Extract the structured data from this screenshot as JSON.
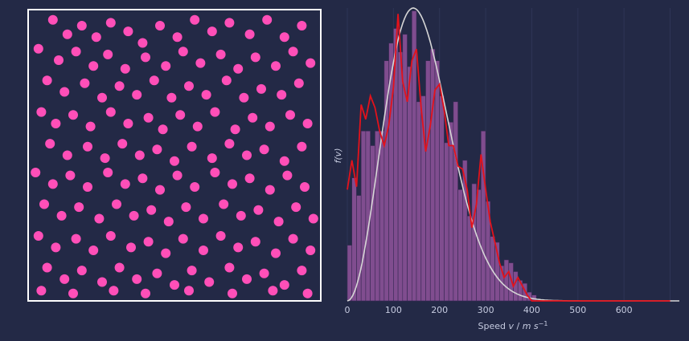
{
  "colors": {
    "background": "#232946",
    "box_frame": "#ffffff",
    "particle": "#ff4fb8",
    "histogram_fill": "#a05aa8",
    "histogram_edge": "#3a2a55",
    "empirical_line": "#e3121b",
    "theory_curve": "#d6d6d6",
    "tick_text": "#c6cbe0",
    "grid": "#2e3556"
  },
  "chart_data": [
    {
      "type": "scatter",
      "name": "particle_box",
      "xlim": [
        0,
        1
      ],
      "ylim": [
        0,
        1
      ],
      "points": [
        [
          0.08,
          0.97
        ],
        [
          0.13,
          0.92
        ],
        [
          0.18,
          0.95
        ],
        [
          0.23,
          0.91
        ],
        [
          0.28,
          0.96
        ],
        [
          0.34,
          0.93
        ],
        [
          0.39,
          0.89
        ],
        [
          0.45,
          0.95
        ],
        [
          0.51,
          0.91
        ],
        [
          0.57,
          0.97
        ],
        [
          0.63,
          0.93
        ],
        [
          0.69,
          0.96
        ],
        [
          0.76,
          0.92
        ],
        [
          0.82,
          0.97
        ],
        [
          0.88,
          0.91
        ],
        [
          0.94,
          0.95
        ],
        [
          0.03,
          0.87
        ],
        [
          0.1,
          0.83
        ],
        [
          0.16,
          0.86
        ],
        [
          0.22,
          0.81
        ],
        [
          0.27,
          0.85
        ],
        [
          0.33,
          0.8
        ],
        [
          0.4,
          0.84
        ],
        [
          0.47,
          0.81
        ],
        [
          0.53,
          0.86
        ],
        [
          0.59,
          0.82
        ],
        [
          0.66,
          0.85
        ],
        [
          0.72,
          0.8
        ],
        [
          0.78,
          0.84
        ],
        [
          0.85,
          0.81
        ],
        [
          0.91,
          0.86
        ],
        [
          0.97,
          0.82
        ],
        [
          0.06,
          0.76
        ],
        [
          0.12,
          0.72
        ],
        [
          0.19,
          0.75
        ],
        [
          0.25,
          0.7
        ],
        [
          0.31,
          0.74
        ],
        [
          0.37,
          0.71
        ],
        [
          0.43,
          0.76
        ],
        [
          0.49,
          0.7
        ],
        [
          0.55,
          0.74
        ],
        [
          0.61,
          0.71
        ],
        [
          0.68,
          0.76
        ],
        [
          0.74,
          0.7
        ],
        [
          0.8,
          0.73
        ],
        [
          0.87,
          0.71
        ],
        [
          0.93,
          0.75
        ],
        [
          0.04,
          0.65
        ],
        [
          0.09,
          0.61
        ],
        [
          0.15,
          0.64
        ],
        [
          0.21,
          0.6
        ],
        [
          0.28,
          0.65
        ],
        [
          0.34,
          0.61
        ],
        [
          0.41,
          0.63
        ],
        [
          0.46,
          0.59
        ],
        [
          0.52,
          0.64
        ],
        [
          0.58,
          0.6
        ],
        [
          0.64,
          0.65
        ],
        [
          0.71,
          0.59
        ],
        [
          0.77,
          0.63
        ],
        [
          0.83,
          0.6
        ],
        [
          0.9,
          0.64
        ],
        [
          0.96,
          0.61
        ],
        [
          0.07,
          0.54
        ],
        [
          0.13,
          0.5
        ],
        [
          0.2,
          0.53
        ],
        [
          0.26,
          0.49
        ],
        [
          0.32,
          0.54
        ],
        [
          0.38,
          0.5
        ],
        [
          0.44,
          0.52
        ],
        [
          0.5,
          0.48
        ],
        [
          0.56,
          0.53
        ],
        [
          0.63,
          0.49
        ],
        [
          0.69,
          0.54
        ],
        [
          0.75,
          0.5
        ],
        [
          0.81,
          0.52
        ],
        [
          0.88,
          0.48
        ],
        [
          0.94,
          0.53
        ],
        [
          0.02,
          0.44
        ],
        [
          0.08,
          0.4
        ],
        [
          0.14,
          0.43
        ],
        [
          0.2,
          0.39
        ],
        [
          0.27,
          0.44
        ],
        [
          0.33,
          0.4
        ],
        [
          0.39,
          0.42
        ],
        [
          0.45,
          0.38
        ],
        [
          0.51,
          0.43
        ],
        [
          0.57,
          0.39
        ],
        [
          0.64,
          0.44
        ],
        [
          0.7,
          0.4
        ],
        [
          0.76,
          0.42
        ],
        [
          0.83,
          0.38
        ],
        [
          0.89,
          0.43
        ],
        [
          0.95,
          0.39
        ],
        [
          0.05,
          0.33
        ],
        [
          0.11,
          0.29
        ],
        [
          0.17,
          0.32
        ],
        [
          0.24,
          0.28
        ],
        [
          0.3,
          0.33
        ],
        [
          0.36,
          0.29
        ],
        [
          0.42,
          0.31
        ],
        [
          0.48,
          0.27
        ],
        [
          0.54,
          0.32
        ],
        [
          0.6,
          0.28
        ],
        [
          0.67,
          0.33
        ],
        [
          0.73,
          0.29
        ],
        [
          0.79,
          0.31
        ],
        [
          0.86,
          0.27
        ],
        [
          0.92,
          0.32
        ],
        [
          0.98,
          0.28
        ],
        [
          0.03,
          0.22
        ],
        [
          0.09,
          0.18
        ],
        [
          0.16,
          0.21
        ],
        [
          0.22,
          0.17
        ],
        [
          0.28,
          0.22
        ],
        [
          0.35,
          0.18
        ],
        [
          0.41,
          0.2
        ],
        [
          0.47,
          0.16
        ],
        [
          0.53,
          0.21
        ],
        [
          0.6,
          0.17
        ],
        [
          0.66,
          0.22
        ],
        [
          0.72,
          0.18
        ],
        [
          0.78,
          0.2
        ],
        [
          0.85,
          0.16
        ],
        [
          0.91,
          0.21
        ],
        [
          0.97,
          0.17
        ],
        [
          0.06,
          0.11
        ],
        [
          0.12,
          0.07
        ],
        [
          0.18,
          0.1
        ],
        [
          0.25,
          0.06
        ],
        [
          0.31,
          0.11
        ],
        [
          0.37,
          0.07
        ],
        [
          0.44,
          0.09
        ],
        [
          0.5,
          0.05
        ],
        [
          0.56,
          0.1
        ],
        [
          0.62,
          0.06
        ],
        [
          0.69,
          0.11
        ],
        [
          0.75,
          0.07
        ],
        [
          0.81,
          0.09
        ],
        [
          0.88,
          0.05
        ],
        [
          0.94,
          0.1
        ],
        [
          0.04,
          0.03
        ],
        [
          0.15,
          0.02
        ],
        [
          0.29,
          0.03
        ],
        [
          0.4,
          0.02
        ],
        [
          0.55,
          0.03
        ],
        [
          0.7,
          0.02
        ],
        [
          0.84,
          0.03
        ],
        [
          0.96,
          0.02
        ]
      ]
    },
    {
      "type": "bar",
      "name": "speed_distribution",
      "xlabel": "Speed v / m s⁻¹",
      "ylabel": "f(v)",
      "xlim": [
        0,
        720
      ],
      "ylim": [
        0,
        1.0
      ],
      "xticks": [
        "0",
        "100",
        "200",
        "300",
        "400",
        "500",
        "600"
      ],
      "bin_width": 10,
      "histogram": [
        0.19,
        0.42,
        0.36,
        0.58,
        0.58,
        0.53,
        0.58,
        0.58,
        0.82,
        0.88,
        0.93,
        0.85,
        0.91,
        0.8,
        0.99,
        0.68,
        0.7,
        0.82,
        0.86,
        0.82,
        0.7,
        0.54,
        0.61,
        0.68,
        0.38,
        0.48,
        0.29,
        0.4,
        0.38,
        0.58,
        0.34,
        0.22,
        0.2,
        0.12,
        0.14,
        0.13,
        0.1,
        0.07,
        0.06,
        0.03,
        0.02
      ],
      "empirical_line": [
        [
          0,
          0.38
        ],
        [
          10,
          0.48
        ],
        [
          20,
          0.39
        ],
        [
          30,
          0.67
        ],
        [
          40,
          0.62
        ],
        [
          50,
          0.7
        ],
        [
          60,
          0.66
        ],
        [
          70,
          0.58
        ],
        [
          80,
          0.53
        ],
        [
          90,
          0.6
        ],
        [
          100,
          0.73
        ],
        [
          110,
          0.98
        ],
        [
          120,
          0.75
        ],
        [
          130,
          0.68
        ],
        [
          140,
          0.82
        ],
        [
          150,
          0.86
        ],
        [
          160,
          0.66
        ],
        [
          170,
          0.51
        ],
        [
          180,
          0.6
        ],
        [
          190,
          0.72
        ],
        [
          200,
          0.74
        ],
        [
          210,
          0.65
        ],
        [
          220,
          0.53
        ],
        [
          230,
          0.53
        ],
        [
          240,
          0.46
        ],
        [
          250,
          0.45
        ],
        [
          260,
          0.38
        ],
        [
          270,
          0.25
        ],
        [
          280,
          0.33
        ],
        [
          290,
          0.5
        ],
        [
          300,
          0.38
        ],
        [
          310,
          0.27
        ],
        [
          320,
          0.2
        ],
        [
          330,
          0.13
        ],
        [
          340,
          0.08
        ],
        [
          350,
          0.1
        ],
        [
          360,
          0.05
        ],
        [
          370,
          0.08
        ],
        [
          380,
          0.05
        ],
        [
          390,
          0.02
        ],
        [
          400,
          0.0
        ],
        [
          410,
          0.0
        ],
        [
          420,
          0.0
        ],
        [
          700,
          0.0
        ]
      ],
      "theory_curve_label": ""
    }
  ]
}
